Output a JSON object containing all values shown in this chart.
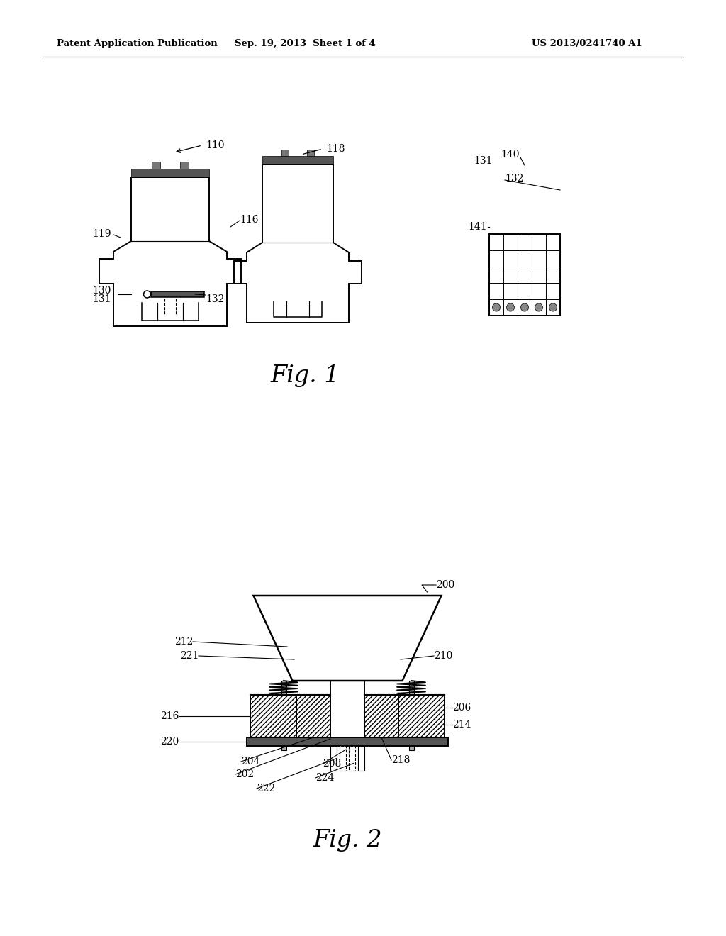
{
  "background_color": "#ffffff",
  "header_left": "Patent Application Publication",
  "header_center": "Sep. 19, 2013  Sheet 1 of 4",
  "header_right": "US 2013/0241740 A1",
  "fig1_label": "Fig. 1",
  "fig2_label": "Fig. 2",
  "black": "#000000",
  "gray_dark": "#333333",
  "gray_med": "#888888",
  "gray_light": "#cccccc"
}
